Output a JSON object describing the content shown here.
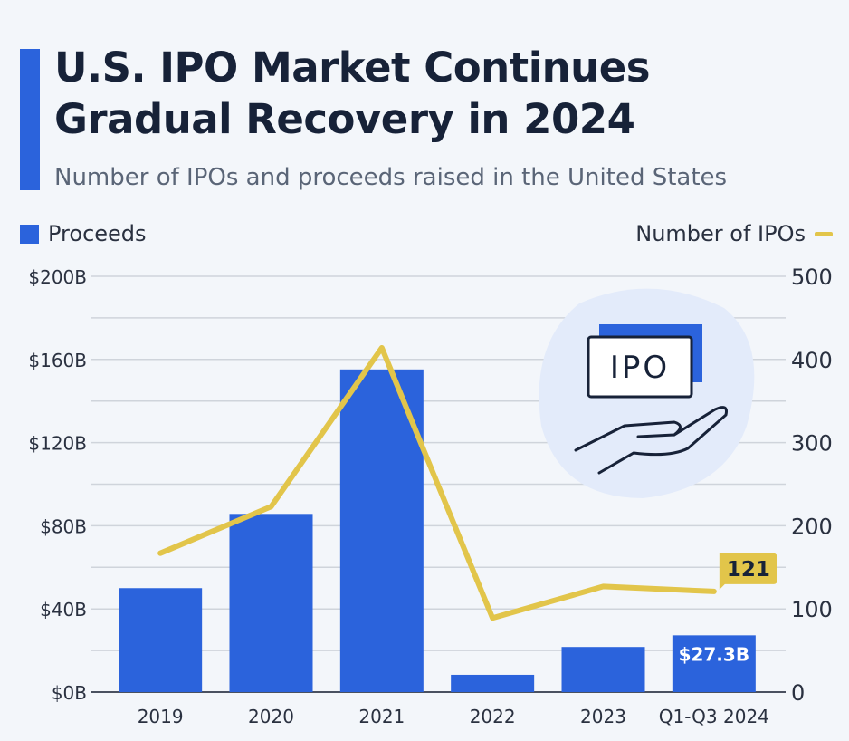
{
  "header": {
    "title_line1": "U.S. IPO Market Continues",
    "title_line2": "Gradual Recovery in 2024",
    "subtitle": "Number of IPOs and proceeds raised in the United States"
  },
  "illustration": {
    "label": "IPO"
  },
  "chart_data": {
    "type": "bar+line",
    "categories": [
      "2019",
      "2020",
      "2021",
      "2022",
      "2023",
      "Q1-Q3 2024"
    ],
    "series": [
      {
        "name": "Proceeds",
        "type": "bar",
        "axis": "left",
        "unit": "$B",
        "values": [
          50,
          85.7,
          155.2,
          8.3,
          21.7,
          27.3
        ],
        "color": "#2b63dc"
      },
      {
        "name": "Number of IPOs",
        "type": "line",
        "axis": "right",
        "values": [
          167,
          223,
          414,
          89,
          127,
          121
        ],
        "color": "#e2c54a"
      }
    ],
    "left_axis": {
      "ylim": [
        0,
        200
      ],
      "ticks": [
        "$0B",
        "$40B",
        "$80B",
        "$120B",
        "$160B",
        "$200B"
      ]
    },
    "right_axis": {
      "ylim": [
        0,
        500
      ],
      "ticks": [
        "0",
        "100",
        "200",
        "300",
        "400",
        "500"
      ]
    },
    "data_labels": {
      "bar_last": "$27.3B",
      "line_last": "121"
    },
    "grid": true,
    "legend": {
      "left": "Proceeds",
      "right": "Number of IPOs"
    }
  }
}
